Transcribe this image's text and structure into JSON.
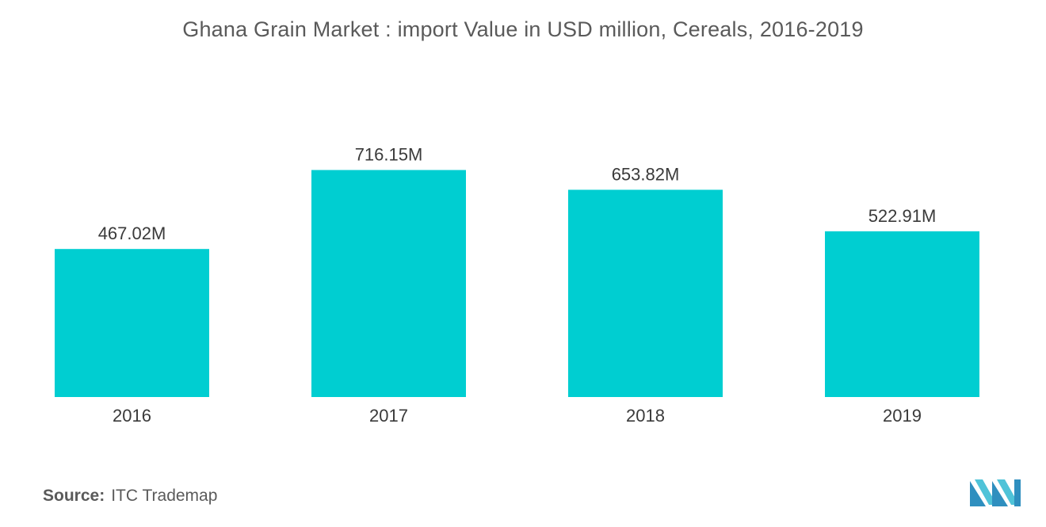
{
  "chart_data": {
    "type": "bar",
    "title": "Ghana Grain Market : import Value in USD million, Cereals, 2016-2019",
    "categories": [
      "2016",
      "2017",
      "2018",
      "2019"
    ],
    "values": [
      467.02,
      716.15,
      653.82,
      522.91
    ],
    "data_labels": [
      "467.02M",
      "716.15M",
      "653.82M",
      "522.91M"
    ],
    "xlabel": "",
    "ylabel": "",
    "ylim": [
      0,
      1000
    ],
    "grid": false,
    "legend": "none",
    "bar_color": "#00CED1"
  },
  "source": {
    "label": "Source:",
    "text": "ITC Trademap"
  },
  "colors": {
    "bar": "#00CED1",
    "logo_primary": "#2f8fbf",
    "logo_secondary": "#4fc3d8"
  }
}
